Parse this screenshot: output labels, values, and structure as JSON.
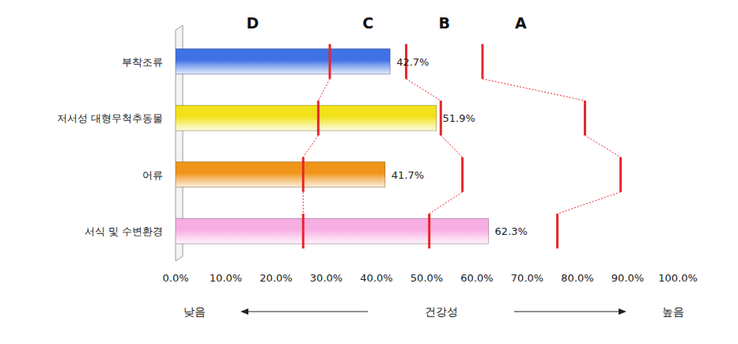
{
  "chart_data": {
    "type": "bar",
    "orientation": "horizontal",
    "categories": [
      "부착조류",
      "저서성 대형무척추동물",
      "어류",
      "서식 및 수변환경"
    ],
    "values": [
      42.7,
      51.9,
      41.7,
      62.3
    ],
    "value_labels": [
      "42.7%",
      "51.9%",
      "41.7%",
      "62.3%"
    ],
    "colors": [
      "#3f72e6",
      "#f2e21c",
      "#f0951a",
      "#f7aee3"
    ],
    "data_labels": true,
    "xlim": [
      0,
      100
    ],
    "xticks": [
      {
        "value": 0,
        "label": "0.0%"
      },
      {
        "value": 10,
        "label": "10.0%"
      },
      {
        "value": 20,
        "label": "20.0%"
      },
      {
        "value": 30,
        "label": "30.0%"
      },
      {
        "value": 40,
        "label": "40.0%"
      },
      {
        "value": 50,
        "label": "50.0%"
      },
      {
        "value": 60,
        "label": "60.0%"
      },
      {
        "value": 70,
        "label": "70.0%"
      },
      {
        "value": 80,
        "label": "80.0%"
      },
      {
        "value": 90,
        "label": "90.0%"
      },
      {
        "value": 100,
        "label": "100.0%"
      }
    ],
    "grid": false,
    "grades": [
      "D",
      "C",
      "B",
      "A"
    ],
    "thresholds": [
      {
        "color": "#e8262a",
        "values": [
          30.7,
          28.4,
          25.4,
          25.4
        ]
      },
      {
        "color": "#e8262a",
        "values": [
          45.9,
          52.8,
          57.1,
          50.5
        ]
      },
      {
        "color": "#e8262a",
        "values": [
          61.1,
          81.5,
          88.6,
          76.0
        ]
      }
    ],
    "x_label": "건강성",
    "annotations": [
      "낮음",
      "높음"
    ]
  }
}
